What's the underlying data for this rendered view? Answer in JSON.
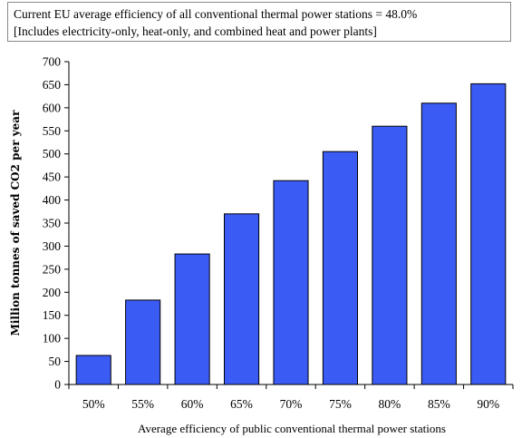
{
  "annotation": {
    "line1": "Current EU average efficiency of all conventional thermal power stations = 48.0%",
    "line2": "[Includes electricity-only, heat-only, and combined heat and power plants]"
  },
  "chart_data": {
    "type": "bar",
    "categories": [
      "50%",
      "55%",
      "60%",
      "65%",
      "70%",
      "75%",
      "80%",
      "85%",
      "90%"
    ],
    "values": [
      63,
      183,
      283,
      370,
      442,
      505,
      560,
      610,
      652
    ],
    "title": "",
    "xlabel": "Average efficiency of public conventional thermal power stations",
    "ylabel": "Million tonnes of saved CO2 per year",
    "ylim": [
      0,
      700
    ],
    "yticks": [
      0,
      50,
      100,
      150,
      200,
      250,
      300,
      350,
      400,
      450,
      500,
      550,
      600,
      650,
      700
    ],
    "grid": false,
    "legend": "none",
    "bar_color": "#3b5bf5",
    "bar_edge_color": "#000000"
  }
}
